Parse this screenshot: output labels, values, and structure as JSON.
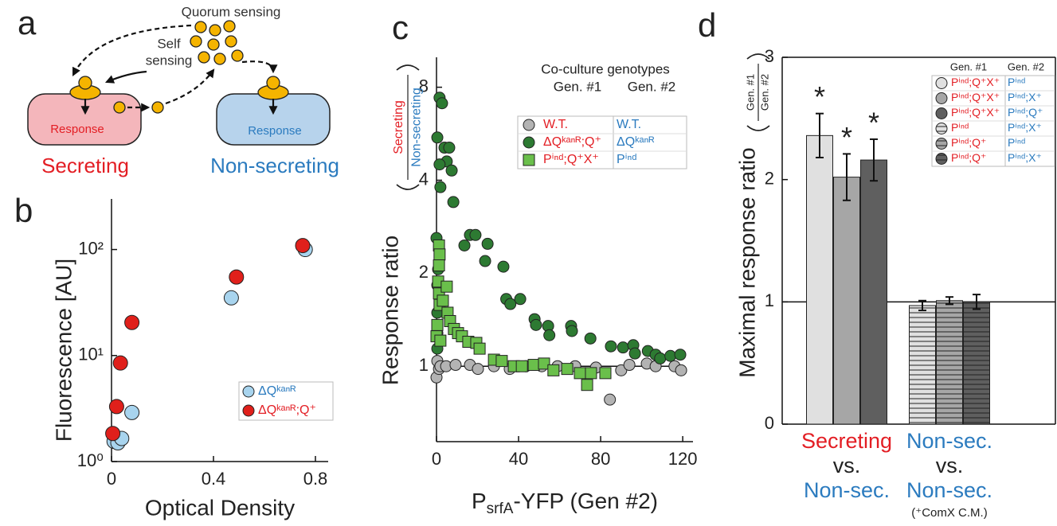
{
  "diagram": {
    "panel_label": "a",
    "quorum_label": "Quorum sensing",
    "self_label": [
      "Self",
      "sensing"
    ],
    "cells": [
      {
        "inner": "Response",
        "label": "Secreting"
      },
      {
        "inner": "Response",
        "label": "Non-secreting"
      }
    ]
  },
  "chart_data": [
    {
      "type": "scatter",
      "panel_label": "b",
      "x_label": "Optical Density",
      "y_label": "Fluorescence [AU]",
      "xlim": [
        0,
        0.85
      ],
      "ylim": [
        1,
        300
      ],
      "y_scale": "log",
      "xticks": [
        0,
        0.4,
        0.8
      ],
      "yticks": [
        {
          "value": 1,
          "label": "10⁰"
        },
        {
          "value": 10,
          "label": "10¹"
        },
        {
          "value": 100,
          "label": "10²"
        }
      ],
      "legend": "lower right",
      "series": [
        {
          "name": "ΔQᵏᵃⁿᴿ",
          "color": "#a8d4ee",
          "label_color": "#2b7bbf",
          "marker": "circle",
          "x": [
            0.01,
            0.025,
            0.04,
            0.08,
            0.47,
            0.76
          ],
          "values": [
            1.55,
            1.5,
            1.65,
            2.9,
            35,
            100
          ]
        },
        {
          "name": "ΔQᵏᵃⁿᴿ;Q⁺",
          "color": "#e0201b",
          "label_color": "#e31e24",
          "marker": "circle",
          "x": [
            0.005,
            0.02,
            0.035,
            0.08,
            0.49,
            0.75
          ],
          "values": [
            1.84,
            3.3,
            8.5,
            20.5,
            55,
            109
          ]
        }
      ]
    },
    {
      "type": "scatter",
      "panel_label": "c",
      "x_label": [
        "P",
        "srfA",
        "-YFP (Gen #2)"
      ],
      "y_label": "Response ratio",
      "y_label_fraction": [
        "Secreting",
        "Non-secreting"
      ],
      "y_label_fraction_colors": [
        "#e31e24",
        "#2b7bbf"
      ],
      "xlim": [
        0,
        125
      ],
      "ylim": [
        0.57,
        10
      ],
      "y_scale": "log",
      "xticks": [
        0,
        40,
        80,
        120
      ],
      "yticks": [
        1,
        2,
        4,
        8
      ],
      "hline": 1,
      "legend": {
        "position": "upper right",
        "title": "Co-culture genotypes",
        "columns": [
          "Gen. #1",
          "Gen. #2"
        ],
        "text_colors": [
          "#e31e24",
          "#2b7bbf"
        ]
      },
      "series": [
        {
          "name": "W.T.",
          "name_2": "W.T.",
          "color": "#b3b3b3",
          "marker": "circle",
          "x": [
            0,
            0.4,
            1.2,
            1.9,
            4.7,
            9.3,
            16.3,
            20.2,
            28,
            35.7,
            43.5,
            51.3,
            59,
            67.6,
            77.7,
            84.5,
            90,
            94,
            102.5,
            106.8,
            116,
            119.2
          ],
          "values": [
            0.92,
            1.04,
            0.98,
            1,
            1,
            1.01,
            1.01,
            0.98,
            1,
            0.98,
            1,
            1,
            1,
            1,
            0.99,
            0.78,
            0.97,
            1.01,
            1.02,
            1,
            1,
            0.97
          ]
        },
        {
          "name": "ΔQᵏᵃⁿᴿ;Q⁺",
          "name_2": "ΔQᵏᵃⁿᴿ",
          "color": "#2d7a32",
          "marker": "circle",
          "x": [
            0.4,
            0.8,
            0.4,
            0.4,
            0.4,
            0,
            1.5,
            2.7,
            0.4,
            3.9,
            6.2,
            5,
            1.5,
            7.4,
            1.9,
            8.2,
            16.3,
            19,
            13.6,
            24.9,
            23.7,
            32.6,
            34,
            36,
            40.8,
            47.8,
            48.5,
            54.4,
            55,
            65.6,
            66,
            75,
            85,
            90.9,
            95.9,
            96.7,
            103,
            106.8,
            109,
            114,
            118.8
          ],
          "values": [
            1.14,
            2.06,
            1.83,
            1.49,
            1.28,
            2.6,
            7.4,
            7.1,
            5.5,
            5.1,
            5.1,
            4.6,
            4.5,
            4.3,
            3.8,
            3.4,
            2.66,
            2.66,
            2.46,
            2.49,
            2.19,
            2.1,
            1.65,
            1.59,
            1.65,
            1.42,
            1.36,
            1.35,
            1.26,
            1.35,
            1.3,
            1.23,
            1.16,
            1.15,
            1.17,
            1.1,
            1.12,
            1.09,
            1.06,
            1.08,
            1.09
          ]
        },
        {
          "name": "Pⁱⁿᵈ;Q⁺X⁺",
          "name_2": "Pⁱⁿᵈ",
          "color": "#6abf4b",
          "marker": "square",
          "x": [
            0,
            1.2,
            1.5,
            1.2,
            0.8,
            1.2,
            1.5,
            0.4,
            1.9,
            3.1,
            5,
            5.4,
            6.6,
            8.5,
            10.5,
            12.4,
            15.5,
            19.4,
            21,
            28,
            31.8,
            37.7,
            41.6,
            47.4,
            52.4,
            57,
            63.7,
            69.9,
            73.4,
            75.3,
            82.3
          ],
          "values": [
            1.25,
            2.46,
            2.3,
            2.12,
            1.88,
            1.72,
            1.58,
            1.36,
            1.21,
            1.63,
            1.81,
            1.49,
            1.4,
            1.32,
            1.28,
            1.25,
            1.2,
            1.19,
            1.14,
            1.05,
            1.04,
            1,
            1,
            1.01,
            1.02,
            0.97,
            0.98,
            0.95,
            0.87,
            0.95,
            0.95
          ]
        }
      ]
    },
    {
      "type": "bar",
      "panel_label": "d",
      "y_label": "Maximal response ratio",
      "y_label_fraction": [
        "Gen. #1",
        "Gen. #2"
      ],
      "ylim": [
        0,
        3
      ],
      "yticks": [
        0,
        1,
        2,
        3
      ],
      "hline": 1,
      "values": [
        2.36,
        2.02,
        2.16,
        0.97,
        1.01,
        1.0
      ],
      "errors": [
        0.18,
        0.19,
        0.17,
        0.04,
        0.03,
        0.06
      ],
      "colors": [
        "#e0e0e0",
        "#a6a6a6",
        "#5f5f5f",
        "#e0e0e0",
        "#a6a6a6",
        "#5f5f5f"
      ],
      "hatched": [
        false,
        false,
        false,
        true,
        true,
        true
      ],
      "annotations": [
        "*",
        "*",
        "*",
        null,
        null,
        null
      ],
      "groups": [
        {
          "labels": [
            "Secreting",
            "vs.",
            "Non-sec."
          ],
          "label_colors": [
            "#e31e24",
            "#222222",
            "#2b7bbf"
          ]
        },
        {
          "labels": [
            "Non-sec.",
            "vs.",
            "Non-sec.",
            "(⁺ComX C.M.)"
          ],
          "label_colors": [
            "#2b7bbf",
            "#222222",
            "#2b7bbf",
            "#222222"
          ]
        }
      ],
      "legend": {
        "position": "upper right",
        "columns": [
          "Gen. #1",
          "Gen. #2"
        ],
        "text_colors": [
          "#e31e24",
          "#2b7bbf"
        ],
        "rows": [
          [
            "Pⁱⁿᵈ;Q⁺X⁺",
            "Pⁱⁿᵈ"
          ],
          [
            "Pⁱⁿᵈ;Q⁺X⁺",
            "Pⁱⁿᵈ;X⁺"
          ],
          [
            "Pⁱⁿᵈ;Q⁺X⁺",
            "Pⁱⁿᵈ;Q⁺"
          ],
          [
            "Pⁱⁿᵈ",
            "Pⁱⁿᵈ;X⁺"
          ],
          [
            "Pⁱⁿᵈ;Q⁺",
            "Pⁱⁿᵈ"
          ],
          [
            "Pⁱⁿᵈ;Q⁺",
            "Pⁱⁿᵈ;X⁺"
          ]
        ]
      }
    }
  ]
}
